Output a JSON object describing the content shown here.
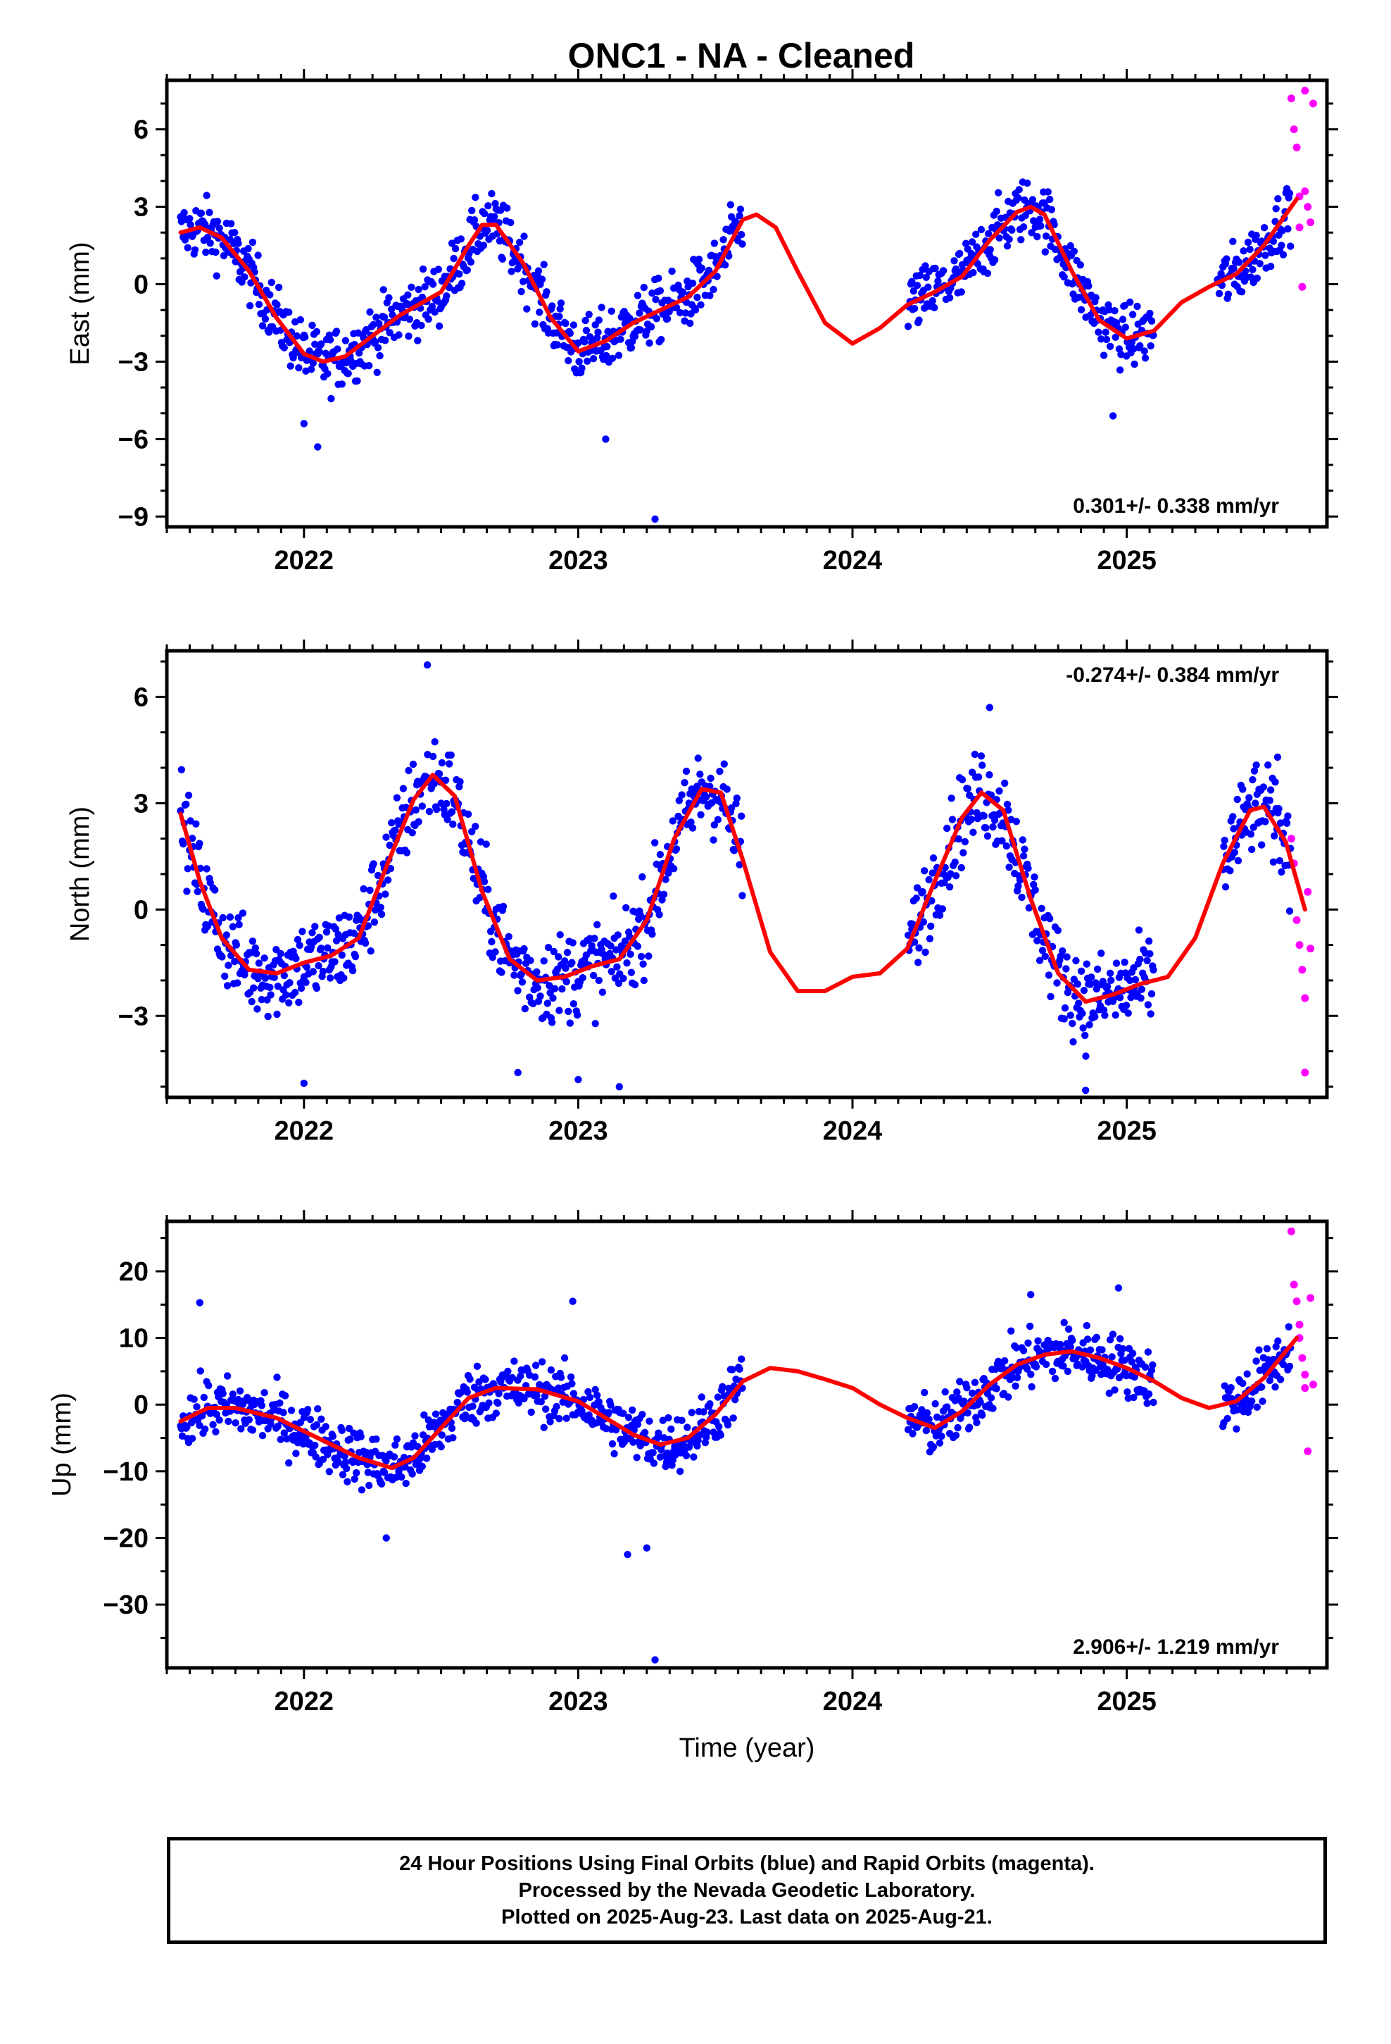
{
  "title": "ONC1  - NA - Cleaned",
  "footer": {
    "line1": "24 Hour Positions Using Final Orbits (blue) and Rapid Orbits (magenta).",
    "line2": "Processed by the Nevada Geodetic Laboratory.",
    "line3": "Plotted on 2025-Aug-23. Last data on 2025-Aug-21."
  },
  "colors": {
    "final_orbits": "#0000ff",
    "rapid_orbits": "#ff00ff",
    "model_fit": "#ff0000"
  },
  "chart_data": [
    {
      "type": "scatter",
      "ylabel": "East (mm)",
      "xlabel": "",
      "xlim": [
        2021.5,
        2025.73
      ],
      "ylim": [
        -9.4,
        7.9
      ],
      "xticks": [
        2022,
        2023,
        2024,
        2025
      ],
      "xtick_labels": [
        "2022",
        "2023",
        "2024",
        "2025"
      ],
      "yticks": [
        6,
        3,
        0,
        -3,
        -6,
        -9
      ],
      "ytick_labels": [
        "6",
        "3",
        "0",
        "−3",
        "−6",
        "−9"
      ],
      "rate": "0.301+/- 0.338 mm/yr",
      "rate_position": "bottom-right",
      "model": [
        [
          2021.55,
          2.0
        ],
        [
          2021.62,
          2.2
        ],
        [
          2021.7,
          1.8
        ],
        [
          2021.8,
          0.5
        ],
        [
          2021.9,
          -1.3
        ],
        [
          2022.0,
          -2.7
        ],
        [
          2022.07,
          -3.0
        ],
        [
          2022.15,
          -2.8
        ],
        [
          2022.25,
          -2.0
        ],
        [
          2022.35,
          -1.2
        ],
        [
          2022.5,
          -0.3
        ],
        [
          2022.6,
          1.5
        ],
        [
          2022.65,
          2.3
        ],
        [
          2022.7,
          2.3
        ],
        [
          2022.8,
          0.8
        ],
        [
          2022.9,
          -1.3
        ],
        [
          2023.0,
          -2.6
        ],
        [
          2023.1,
          -2.2
        ],
        [
          2023.2,
          -1.5
        ],
        [
          2023.4,
          -0.5
        ],
        [
          2023.5,
          0.5
        ],
        [
          2023.55,
          1.5
        ],
        [
          2023.6,
          2.5
        ],
        [
          2023.65,
          2.7
        ],
        [
          2023.72,
          2.2
        ],
        [
          2023.8,
          0.5
        ],
        [
          2023.9,
          -1.5
        ],
        [
          2024.0,
          -2.3
        ],
        [
          2024.1,
          -1.7
        ],
        [
          2024.2,
          -0.8
        ],
        [
          2024.3,
          -0.3
        ],
        [
          2024.4,
          0.3
        ],
        [
          2024.5,
          1.7
        ],
        [
          2024.6,
          2.8
        ],
        [
          2024.65,
          3.0
        ],
        [
          2024.7,
          2.7
        ],
        [
          2024.8,
          0.5
        ],
        [
          2024.9,
          -1.4
        ],
        [
          2025.0,
          -2.1
        ],
        [
          2025.1,
          -1.8
        ],
        [
          2025.2,
          -0.7
        ],
        [
          2025.3,
          -0.1
        ],
        [
          2025.4,
          0.4
        ],
        [
          2025.5,
          1.5
        ],
        [
          2025.62,
          3.3
        ]
      ],
      "final_data": {
        "start": 2021.55,
        "gaps": [
          [
            2023.6,
            2024.2
          ],
          [
            2025.1,
            2025.33
          ]
        ],
        "end": 2025.6,
        "scatter": 1.1,
        "outliers": [
          [
            2022.05,
            -6.3
          ],
          [
            2022.0,
            -5.4
          ],
          [
            2023.28,
            -9.1
          ],
          [
            2023.1,
            -6.0
          ],
          [
            2024.95,
            -5.1
          ]
        ]
      },
      "rapid_data": {
        "x": [
          2025.6,
          2025.61,
          2025.62,
          2025.63,
          2025.63,
          2025.64,
          2025.65,
          2025.65,
          2025.66,
          2025.67,
          2025.68
        ],
        "y": [
          7.2,
          6.0,
          5.3,
          3.4,
          2.2,
          -0.1,
          7.5,
          3.6,
          3.0,
          2.4,
          7.0
        ]
      }
    },
    {
      "type": "scatter",
      "ylabel": "North (mm)",
      "xlabel": "",
      "xlim": [
        2021.5,
        2025.73
      ],
      "ylim": [
        -5.3,
        7.3
      ],
      "xticks": [
        2022,
        2023,
        2024,
        2025
      ],
      "xtick_labels": [
        "2022",
        "2023",
        "2024",
        "2025"
      ],
      "yticks": [
        6,
        3,
        0,
        -3
      ],
      "ytick_labels": [
        "6",
        "3",
        "0",
        "−3"
      ],
      "rate": "-0.274+/- 0.384 mm/yr",
      "rate_position": "top-right",
      "model": [
        [
          2021.55,
          2.7
        ],
        [
          2021.62,
          0.8
        ],
        [
          2021.7,
          -0.8
        ],
        [
          2021.8,
          -1.7
        ],
        [
          2021.9,
          -1.8
        ],
        [
          2022.0,
          -1.5
        ],
        [
          2022.1,
          -1.3
        ],
        [
          2022.2,
          -0.8
        ],
        [
          2022.3,
          1.2
        ],
        [
          2022.4,
          3.1
        ],
        [
          2022.47,
          3.8
        ],
        [
          2022.55,
          3.2
        ],
        [
          2022.65,
          0.5
        ],
        [
          2022.75,
          -1.4
        ],
        [
          2022.85,
          -2.0
        ],
        [
          2022.95,
          -1.9
        ],
        [
          2023.05,
          -1.6
        ],
        [
          2023.15,
          -1.4
        ],
        [
          2023.25,
          -0.3
        ],
        [
          2023.35,
          2.0
        ],
        [
          2023.45,
          3.4
        ],
        [
          2023.52,
          3.3
        ],
        [
          2023.6,
          1.4
        ],
        [
          2023.7,
          -1.2
        ],
        [
          2023.8,
          -2.3
        ],
        [
          2023.9,
          -2.3
        ],
        [
          2024.0,
          -1.9
        ],
        [
          2024.1,
          -1.8
        ],
        [
          2024.2,
          -1.1
        ],
        [
          2024.3,
          0.8
        ],
        [
          2024.4,
          2.6
        ],
        [
          2024.47,
          3.3
        ],
        [
          2024.55,
          2.8
        ],
        [
          2024.65,
          0.3
        ],
        [
          2024.75,
          -1.8
        ],
        [
          2024.85,
          -2.6
        ],
        [
          2024.95,
          -2.4
        ],
        [
          2025.05,
          -2.1
        ],
        [
          2025.15,
          -1.9
        ],
        [
          2025.25,
          -0.8
        ],
        [
          2025.35,
          1.3
        ],
        [
          2025.45,
          2.8
        ],
        [
          2025.5,
          2.9
        ],
        [
          2025.58,
          1.9
        ],
        [
          2025.65,
          0.0
        ]
      ],
      "final_data": {
        "start": 2021.55,
        "gaps": [
          [
            2023.6,
            2024.2
          ],
          [
            2025.1,
            2025.35
          ]
        ],
        "end": 2025.6,
        "scatter": 1.15,
        "outliers": [
          [
            2022.0,
            -4.9
          ],
          [
            2022.78,
            -4.6
          ],
          [
            2023.0,
            -4.8
          ],
          [
            2023.15,
            -5.0
          ],
          [
            2024.85,
            -5.1
          ],
          [
            2022.45,
            6.9
          ],
          [
            2024.5,
            5.7
          ],
          [
            2025.55,
            4.3
          ]
        ]
      },
      "rapid_data": {
        "x": [
          2025.6,
          2025.61,
          2025.62,
          2025.63,
          2025.64,
          2025.65,
          2025.65,
          2025.66,
          2025.67
        ],
        "y": [
          2.0,
          1.3,
          -0.3,
          -1.0,
          -1.7,
          -2.5,
          -4.6,
          0.5,
          -1.1
        ]
      }
    },
    {
      "type": "scatter",
      "ylabel": "Up (mm)",
      "xlabel": "Time (year)",
      "xlim": [
        2021.5,
        2025.73
      ],
      "ylim": [
        -39.5,
        27.5
      ],
      "xticks": [
        2022,
        2023,
        2024,
        2025
      ],
      "xtick_labels": [
        "2022",
        "2023",
        "2024",
        "2025"
      ],
      "yticks": [
        20,
        10,
        0,
        -10,
        -20,
        -30
      ],
      "ytick_labels": [
        "20",
        "10",
        "0",
        "−10",
        "−20",
        "−30"
      ],
      "rate": "2.906+/- 1.219 mm/yr",
      "rate_position": "bottom-right",
      "model": [
        [
          2021.55,
          -2.5
        ],
        [
          2021.65,
          -0.5
        ],
        [
          2021.75,
          -0.5
        ],
        [
          2021.9,
          -2.0
        ],
        [
          2022.05,
          -5.0
        ],
        [
          2022.2,
          -8.0
        ],
        [
          2022.32,
          -9.5
        ],
        [
          2022.4,
          -8.0
        ],
        [
          2022.5,
          -3.5
        ],
        [
          2022.6,
          1.0
        ],
        [
          2022.7,
          2.5
        ],
        [
          2022.85,
          2.3
        ],
        [
          2023.0,
          0.5
        ],
        [
          2023.1,
          -2.0
        ],
        [
          2023.2,
          -4.5
        ],
        [
          2023.3,
          -6.0
        ],
        [
          2023.4,
          -5.0
        ],
        [
          2023.5,
          -1.5
        ],
        [
          2023.6,
          3.5
        ],
        [
          2023.7,
          5.5
        ],
        [
          2023.8,
          5.0
        ],
        [
          2023.9,
          3.8
        ],
        [
          2024.0,
          2.5
        ],
        [
          2024.1,
          0.0
        ],
        [
          2024.2,
          -2.0
        ],
        [
          2024.3,
          -3.5
        ],
        [
          2024.4,
          -1.0
        ],
        [
          2024.5,
          3.0
        ],
        [
          2024.6,
          6.0
        ],
        [
          2024.7,
          7.5
        ],
        [
          2024.8,
          8.0
        ],
        [
          2024.9,
          7.0
        ],
        [
          2025.0,
          5.5
        ],
        [
          2025.1,
          3.5
        ],
        [
          2025.2,
          1.0
        ],
        [
          2025.3,
          -0.5
        ],
        [
          2025.4,
          0.5
        ],
        [
          2025.5,
          4.0
        ],
        [
          2025.62,
          10.0
        ]
      ],
      "final_data": {
        "start": 2021.55,
        "gaps": [
          [
            2023.6,
            2024.2
          ],
          [
            2025.1,
            2025.35
          ]
        ],
        "end": 2025.6,
        "scatter": 4.0,
        "outliers": [
          [
            2023.28,
            -38.3
          ],
          [
            2023.18,
            -22.5
          ],
          [
            2023.25,
            -21.5
          ],
          [
            2022.3,
            -20.0
          ],
          [
            2021.62,
            15.3
          ],
          [
            2022.98,
            15.5
          ],
          [
            2024.97,
            17.5
          ],
          [
            2024.65,
            16.5
          ]
        ]
      },
      "rapid_data": {
        "x": [
          2025.6,
          2025.61,
          2025.62,
          2025.63,
          2025.63,
          2025.64,
          2025.65,
          2025.65,
          2025.66,
          2025.67,
          2025.68
        ],
        "y": [
          26.0,
          18.0,
          15.5,
          12.0,
          10.0,
          7.0,
          4.5,
          2.5,
          -7.0,
          16.0,
          3.0
        ]
      }
    }
  ]
}
